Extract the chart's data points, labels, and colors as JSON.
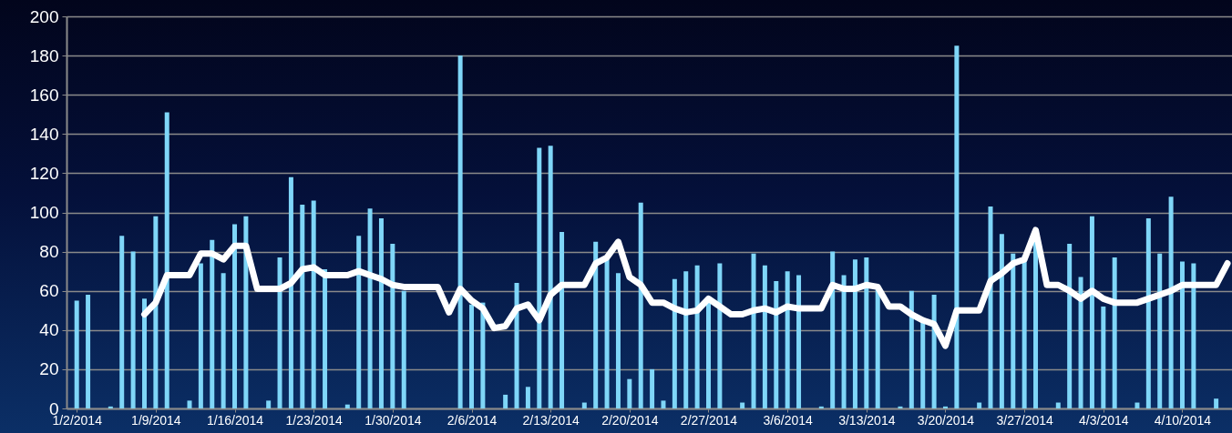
{
  "chart_data": {
    "type": "bar",
    "x": [
      "2014-01-02",
      "2014-01-03",
      "2014-01-04",
      "2014-01-05",
      "2014-01-06",
      "2014-01-07",
      "2014-01-08",
      "2014-01-09",
      "2014-01-10",
      "2014-01-11",
      "2014-01-12",
      "2014-01-13",
      "2014-01-14",
      "2014-01-15",
      "2014-01-16",
      "2014-01-17",
      "2014-01-18",
      "2014-01-19",
      "2014-01-20",
      "2014-01-21",
      "2014-01-22",
      "2014-01-23",
      "2014-01-24",
      "2014-01-25",
      "2014-01-26",
      "2014-01-27",
      "2014-01-28",
      "2014-01-29",
      "2014-01-30",
      "2014-01-31",
      "2014-02-01",
      "2014-02-02",
      "2014-02-03",
      "2014-02-04",
      "2014-02-05",
      "2014-02-06",
      "2014-02-07",
      "2014-02-08",
      "2014-02-09",
      "2014-02-10",
      "2014-02-11",
      "2014-02-12",
      "2014-02-13",
      "2014-02-14",
      "2014-02-15",
      "2014-02-16",
      "2014-02-17",
      "2014-02-18",
      "2014-02-19",
      "2014-02-20",
      "2014-02-21",
      "2014-02-22",
      "2014-02-23",
      "2014-02-24",
      "2014-02-25",
      "2014-02-26",
      "2014-02-27",
      "2014-02-28",
      "2014-03-01",
      "2014-03-02",
      "2014-03-03",
      "2014-03-04",
      "2014-03-05",
      "2014-03-06",
      "2014-03-07",
      "2014-03-08",
      "2014-03-09",
      "2014-03-10",
      "2014-03-11",
      "2014-03-12",
      "2014-03-13",
      "2014-03-14",
      "2014-03-15",
      "2014-03-16",
      "2014-03-17",
      "2014-03-18",
      "2014-03-19",
      "2014-03-20",
      "2014-03-21",
      "2014-03-22",
      "2014-03-23",
      "2014-03-24",
      "2014-03-25",
      "2014-03-26",
      "2014-03-27",
      "2014-03-28",
      "2014-03-29",
      "2014-03-30",
      "2014-03-31",
      "2014-04-01",
      "2014-04-02",
      "2014-04-03",
      "2014-04-04",
      "2014-04-05",
      "2014-04-06",
      "2014-04-07",
      "2014-04-08",
      "2014-04-09",
      "2014-04-10",
      "2014-04-11",
      "2014-04-12",
      "2014-04-13"
    ],
    "series": [
      {
        "color": "#7fd6f8",
        "values": [
          55,
          58,
          0,
          1,
          88,
          80,
          56,
          98,
          151,
          0,
          4,
          74,
          86,
          69,
          94,
          98,
          0,
          4,
          77,
          118,
          104,
          106,
          71,
          0,
          2,
          88,
          102,
          97,
          84,
          60,
          0,
          0,
          0,
          0,
          180,
          53,
          54,
          0,
          7,
          64,
          11,
          133,
          134,
          90,
          0,
          3,
          85,
          78,
          69,
          15,
          105,
          20,
          4,
          66,
          70,
          73,
          54,
          74,
          0,
          3,
          79,
          73,
          65,
          70,
          68,
          0,
          1,
          80,
          68,
          76,
          77,
          63,
          0,
          1,
          60,
          44,
          58,
          1,
          185,
          0,
          3,
          103,
          89,
          79,
          78,
          92,
          0,
          3,
          84,
          67,
          98,
          52,
          77,
          0,
          3,
          97,
          79,
          108,
          75,
          74,
          0,
          5
        ]
      },
      {
        "type": "line",
        "color": "#ffffff",
        "x": [
          "2014-01-08",
          "2014-01-09",
          "2014-01-10",
          "2014-01-11",
          "2014-01-12",
          "2014-01-13",
          "2014-01-14",
          "2014-01-15",
          "2014-01-16",
          "2014-01-17",
          "2014-01-18",
          "2014-01-19",
          "2014-01-20",
          "2014-01-21",
          "2014-01-22",
          "2014-01-23",
          "2014-01-24",
          "2014-01-25",
          "2014-01-26",
          "2014-01-27",
          "2014-01-28",
          "2014-01-29",
          "2014-01-30",
          "2014-01-31",
          "2014-02-01",
          "2014-02-02",
          "2014-02-03",
          "2014-02-04",
          "2014-02-05",
          "2014-02-06",
          "2014-02-07",
          "2014-02-08",
          "2014-02-09",
          "2014-02-10",
          "2014-02-11",
          "2014-02-12",
          "2014-02-13",
          "2014-02-14",
          "2014-02-15",
          "2014-02-16",
          "2014-02-17",
          "2014-02-18",
          "2014-02-19",
          "2014-02-20",
          "2014-02-21",
          "2014-02-22",
          "2014-02-23",
          "2014-02-24",
          "2014-02-25",
          "2014-02-26",
          "2014-02-27",
          "2014-02-28",
          "2014-03-01",
          "2014-03-02",
          "2014-03-03",
          "2014-03-04",
          "2014-03-05",
          "2014-03-06",
          "2014-03-07",
          "2014-03-08",
          "2014-03-09",
          "2014-03-10",
          "2014-03-11",
          "2014-03-12",
          "2014-03-13",
          "2014-03-14",
          "2014-03-15",
          "2014-03-16",
          "2014-03-17",
          "2014-03-18",
          "2014-03-19",
          "2014-03-20",
          "2014-03-21",
          "2014-03-22",
          "2014-03-23",
          "2014-03-24",
          "2014-03-25",
          "2014-03-26",
          "2014-03-27",
          "2014-03-28",
          "2014-03-29",
          "2014-03-30",
          "2014-03-31",
          "2014-04-01",
          "2014-04-02",
          "2014-04-03",
          "2014-04-04",
          "2014-04-05",
          "2014-04-06",
          "2014-04-07",
          "2014-04-08",
          "2014-04-09",
          "2014-04-10",
          "2014-04-11",
          "2014-04-12",
          "2014-04-13",
          "2014-04-14"
        ],
        "values": [
          48,
          54,
          68,
          68,
          68,
          79,
          79,
          76,
          83,
          83,
          61,
          61,
          61,
          64,
          71,
          72,
          68,
          68,
          68,
          70,
          68,
          66,
          63,
          62,
          62,
          62,
          62,
          49,
          61,
          55,
          51,
          41,
          42,
          51,
          53,
          45,
          58,
          63,
          63,
          63,
          74,
          77,
          85,
          67,
          63,
          54,
          54,
          51,
          49,
          50,
          56,
          52,
          48,
          48,
          50,
          51,
          49,
          52,
          51,
          51,
          51,
          63,
          61,
          61,
          63,
          62,
          52,
          52,
          48,
          45,
          43,
          32,
          50,
          50,
          50,
          65,
          69,
          74,
          76,
          91,
          63,
          63,
          60,
          56,
          60,
          56,
          54,
          54,
          54,
          56,
          58,
          60,
          63,
          63,
          63,
          63,
          74
        ]
      }
    ],
    "xlim": [
      "2014-01-01T12:00",
      "2014-04-14"
    ],
    "xticks": [
      {
        "value": "2014-01-02",
        "label": "1/2/2014"
      },
      {
        "value": "2014-01-09",
        "label": "1/9/2014"
      },
      {
        "value": "2014-01-16",
        "label": "1/16/2014"
      },
      {
        "value": "2014-01-23",
        "label": "1/23/2014"
      },
      {
        "value": "2014-01-30",
        "label": "1/30/2014"
      },
      {
        "value": "2014-02-06",
        "label": "2/6/2014"
      },
      {
        "value": "2014-02-13",
        "label": "2/13/2014"
      },
      {
        "value": "2014-02-20",
        "label": "2/20/2014"
      },
      {
        "value": "2014-02-27",
        "label": "2/27/2014"
      },
      {
        "value": "2014-03-06",
        "label": "3/6/2014"
      },
      {
        "value": "2014-03-13",
        "label": "3/13/2014"
      },
      {
        "value": "2014-03-20",
        "label": "3/20/2014"
      },
      {
        "value": "2014-03-27",
        "label": "3/27/2014"
      },
      {
        "value": "2014-04-03",
        "label": "4/3/2014"
      },
      {
        "value": "2014-04-10",
        "label": "4/10/2014"
      }
    ],
    "ylim": [
      0,
      200
    ],
    "yticks": [
      0,
      20,
      40,
      60,
      80,
      100,
      120,
      140,
      160,
      180,
      200
    ],
    "grid": "y"
  }
}
